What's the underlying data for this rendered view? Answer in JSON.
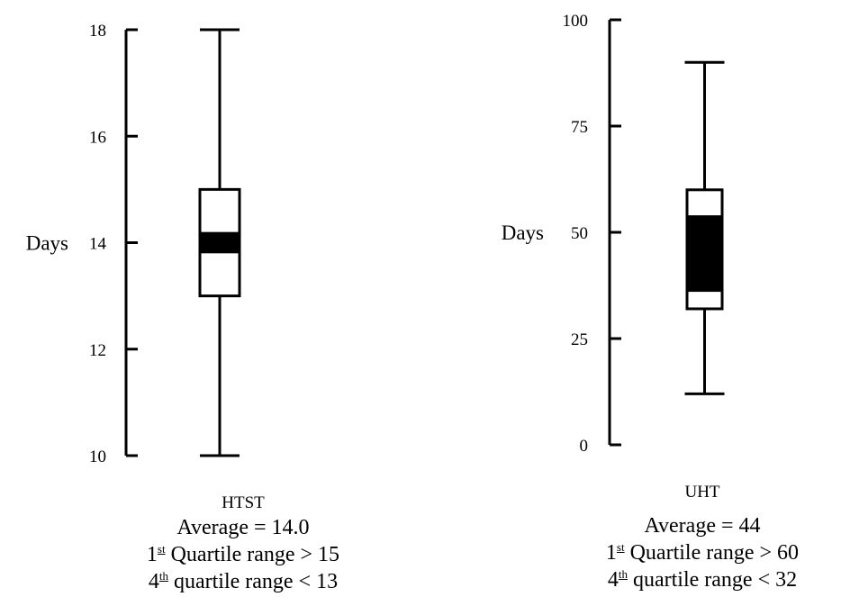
{
  "chart_data": [
    {
      "type": "box",
      "category": "HTST",
      "ylabel": "Days",
      "ylim": [
        10,
        18
      ],
      "yticks": [
        10,
        12,
        14,
        16,
        18
      ],
      "whisker_low": 10,
      "q1": 13,
      "median_band": [
        13.8,
        14.2
      ],
      "q3": 15,
      "whisker_high": 18,
      "caption": {
        "name": "HTST",
        "average": "Average = 14.0",
        "q1_prefix": "1",
        "q1_sup": "st",
        "q1_text": " Quartile range > 15",
        "q4_prefix": "4",
        "q4_sup": "th",
        "q4_text": " quartile range < 13"
      }
    },
    {
      "type": "box",
      "category": "UHT",
      "ylabel": "Days",
      "ylim": [
        0,
        100
      ],
      "yticks": [
        0,
        25,
        50,
        75,
        100
      ],
      "whisker_low": 12,
      "q1": 32,
      "median_band": [
        36,
        54
      ],
      "q3": 60,
      "whisker_high": 90,
      "caption": {
        "name": "UHT",
        "average": "Average = 44",
        "q1_prefix": "1",
        "q1_sup": "st",
        "q1_text": " Quartile range > 60",
        "q4_prefix": "4",
        "q4_sup": "th",
        "q4_text": " quartile range < 32"
      }
    }
  ]
}
